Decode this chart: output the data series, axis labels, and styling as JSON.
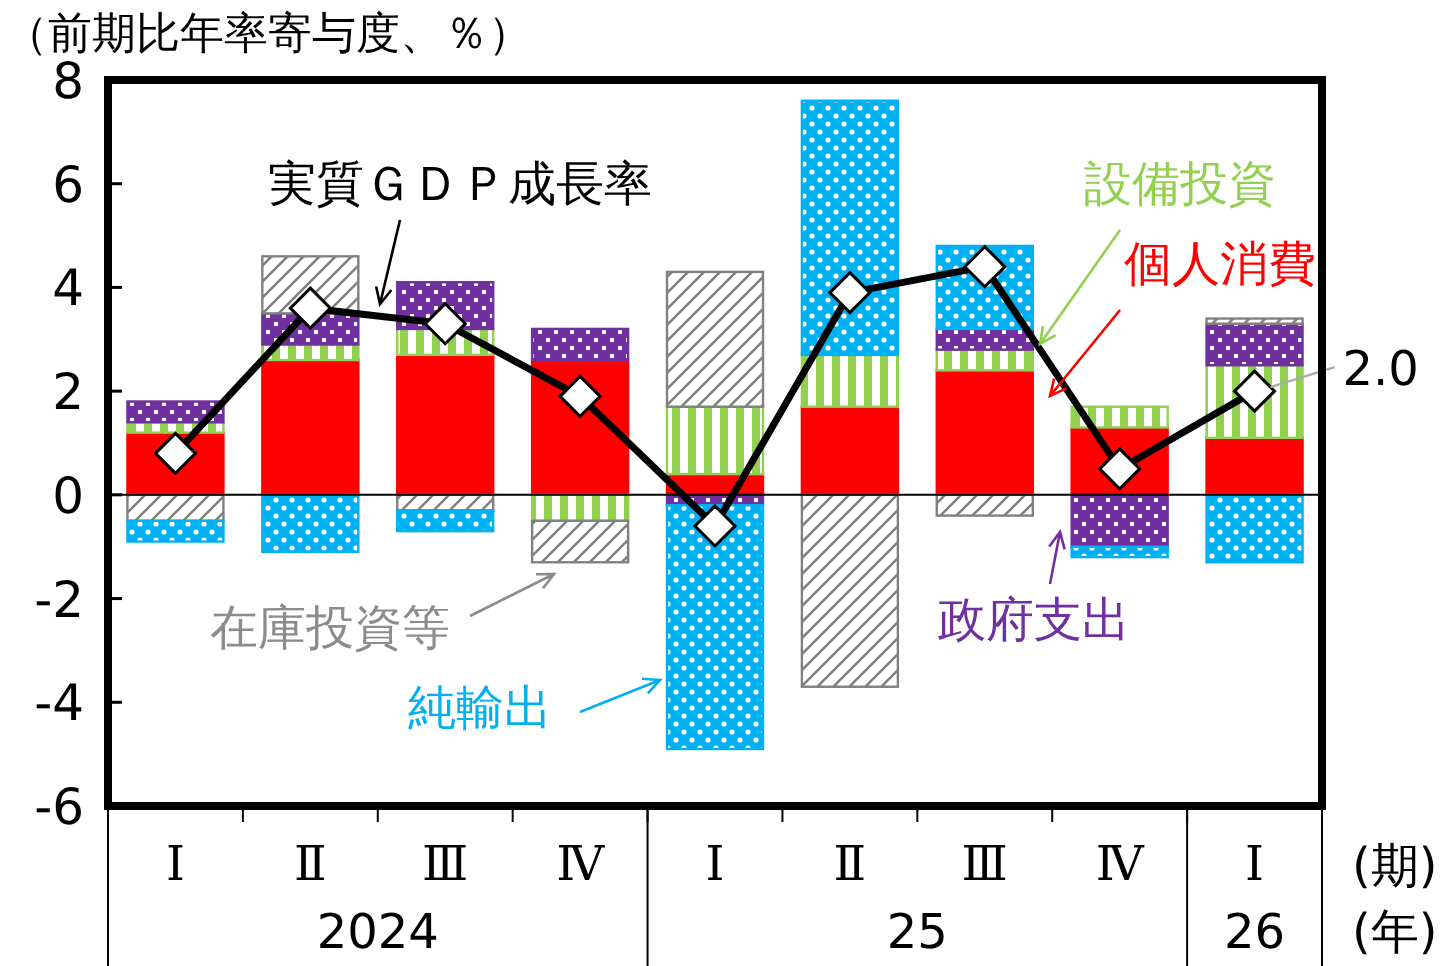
{
  "chart_data": {
    "type": "bar",
    "stacked": true,
    "ylabel": "（前期比年率寄与度、％）",
    "xlabel": "(期)",
    "legend": false,
    "categories": [
      "Ⅰ",
      "Ⅱ",
      "Ⅲ",
      "Ⅳ",
      "Ⅰ",
      "Ⅱ",
      "Ⅲ",
      "Ⅳ",
      "Ⅰ"
    ],
    "series": [
      {
        "name": "個人消費",
        "color": "#ff0000",
        "values": [
          1.2,
          2.6,
          2.7,
          2.6,
          0.4,
          1.7,
          2.4,
          1.3,
          1.1
        ]
      },
      {
        "name": "設備投資",
        "color": "#92d050",
        "values": [
          0.2,
          0.3,
          0.5,
          -0.5,
          1.3,
          1.0,
          0.4,
          0.4,
          1.4
        ]
      },
      {
        "name": "政府支出",
        "color": "#7030a0",
        "values": [
          0.4,
          0.6,
          0.9,
          0.6,
          -0.2,
          0,
          0.4,
          -1.0,
          0.8
        ]
      },
      {
        "name": "在庫投資等",
        "color": "#808080",
        "values": [
          -0.5,
          1.1,
          -0.3,
          -0.8,
          2.6,
          -3.7,
          -0.4,
          0,
          0.1
        ]
      },
      {
        "name": "純輸出",
        "color": "#00b0f0",
        "values": [
          -0.4,
          -1.1,
          -0.4,
          0,
          -4.7,
          4.9,
          1.6,
          -0.2,
          -1.3
        ]
      },
      {
        "name": "実質ＧＤＰ成長率",
        "type": "line",
        "color": "#000000",
        "marker": "diamond",
        "values": [
          0.8,
          3.6,
          3.3,
          1.9,
          -0.6,
          3.9,
          4.4,
          0.5,
          2.0
        ],
        "value_labels": [
          null,
          null,
          null,
          null,
          null,
          null,
          null,
          null,
          "2.0"
        ]
      }
    ],
    "ylim": [
      -6,
      8
    ],
    "yticks": [
      -6,
      -4,
      -2,
      0,
      2,
      4,
      6,
      8
    ],
    "annotations": [
      "2024",
      "25",
      "26",
      "(年)"
    ]
  }
}
